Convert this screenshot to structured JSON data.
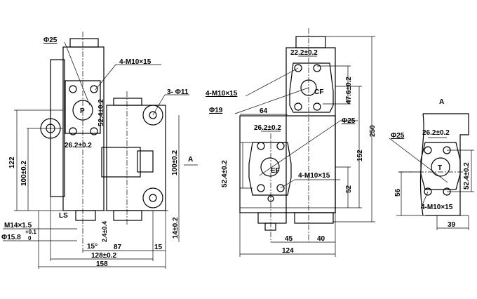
{
  "left_view": {
    "phi25": "Φ25",
    "m10": "4-M10×15",
    "phi11": "3- Φ11",
    "port_p": "P",
    "d52": "52.4±0.2",
    "d26": "26.2±0.2",
    "d122": "122",
    "d100a": "100±0.2",
    "view_a": "A",
    "d100b": "100±0.2",
    "ls": "LS",
    "m14": "M14×1.5",
    "phi158": "Φ15.8",
    "tol_up": "+0.1",
    "tol_dn": "0",
    "d24": "2.4±0.4",
    "angle": "15°",
    "d87": "87",
    "d15": "15",
    "d128": "128±0.2",
    "d158": "158",
    "d14": "14±0.2"
  },
  "middle_view": {
    "d22": "22.2±0.2",
    "port_cf": "CF",
    "d476": "47.6±0.2",
    "m10a": "4-M10×15",
    "phi19": "Φ19",
    "d64": "64",
    "d26": "26.2±0.2",
    "phi25": "Φ25",
    "port_ef": "EF",
    "d52": "52.4±0.2",
    "m10b": "4-M10×15",
    "d152": "152",
    "d250": "250",
    "d52b": "52",
    "d45": "45",
    "d40": "40",
    "d124": "124"
  },
  "right_view": {
    "title": "A",
    "phi25": "Φ25",
    "d26": "26.2±0.2",
    "port_t": "T",
    "d52": "52.4±0.2",
    "d56": "56",
    "m10": "4-M10×15",
    "d39": "39"
  }
}
